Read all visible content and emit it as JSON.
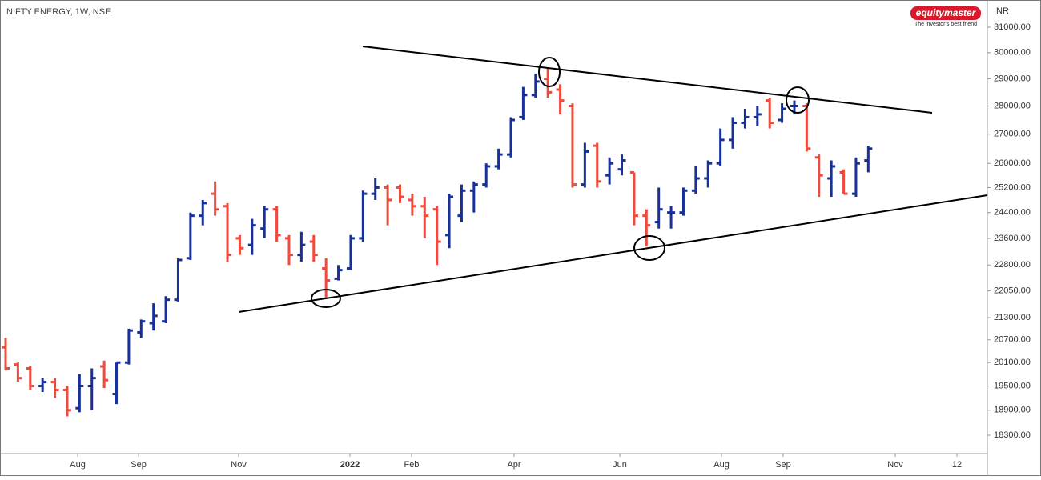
{
  "chart_data": {
    "type": "ohlc",
    "title": "NIFTY ENERGY, 1W, NSE",
    "logo": "equitymaster",
    "logo_tagline": "The investor's best friend",
    "y_axis_label": "INR",
    "log_scale": true,
    "up_color": "#17309a",
    "down_color": "#ef4a3c",
    "open": [
      20500,
      20050,
      19950,
      19500,
      19600,
      19400,
      18950,
      19500,
      20000,
      19300,
      20100,
      20900,
      21150,
      21200,
      21800,
      23000,
      24300,
      25000,
      24600,
      23600,
      23400,
      23900,
      24500,
      23600,
      23100,
      23500,
      22700,
      22400,
      22700,
      23600,
      25000,
      25200,
      25200,
      24800,
      24600,
      24500,
      23700,
      24300,
      25100,
      25300,
      25900,
      26300,
      27600,
      28400,
      29000,
      28600,
      28000,
      25300,
      26600,
      25600,
      25800,
      25700,
      24300,
      24100,
      24400,
      24400,
      25100,
      25500,
      26000,
      26800,
      27400,
      27600,
      28200,
      27500,
      28000,
      28000,
      26200,
      25500,
      25700,
      25000,
      26100
    ],
    "high": [
      20750,
      20100,
      20000,
      19700,
      19700,
      19500,
      19800,
      19950,
      20150,
      20100,
      21000,
      21250,
      21700,
      21900,
      23000,
      24400,
      24800,
      25400,
      24700,
      23700,
      24200,
      24600,
      24600,
      23700,
      23800,
      23700,
      23000,
      22800,
      23700,
      25100,
      25500,
      25300,
      25300,
      25000,
      24900,
      24600,
      25000,
      25300,
      25400,
      26000,
      26500,
      27600,
      28700,
      29200,
      29400,
      28800,
      28100,
      26700,
      26700,
      26200,
      26300,
      25700,
      24500,
      25200,
      24600,
      25200,
      25900,
      26100,
      27200,
      27600,
      27900,
      28000,
      28300,
      28100,
      28200,
      28100,
      26300,
      26100,
      25800,
      26200,
      26600
    ],
    "low": [
      19900,
      19600,
      19400,
      19350,
      19200,
      18750,
      18850,
      18900,
      19450,
      19050,
      20050,
      20750,
      20950,
      21150,
      21750,
      22950,
      24000,
      24300,
      22900,
      23100,
      23100,
      23600,
      23500,
      22800,
      22900,
      22900,
      21850,
      22350,
      22650,
      23500,
      24800,
      24000,
      24700,
      24300,
      23600,
      22800,
      23300,
      24100,
      24400,
      25200,
      25800,
      26200,
      27500,
      28300,
      28300,
      27700,
      25200,
      25200,
      25200,
      25300,
      25600,
      24000,
      23350,
      23900,
      23900,
      24300,
      25000,
      25200,
      25900,
      26500,
      27200,
      27300,
      27200,
      27400,
      27700,
      26400,
      24900,
      24900,
      25000,
      24900,
      25700
    ],
    "close": [
      19950,
      19700,
      19500,
      19600,
      19400,
      18900,
      19500,
      19700,
      19650,
      20100,
      20950,
      21200,
      21350,
      21800,
      22950,
      24300,
      24700,
      24500,
      23100,
      23300,
      24000,
      24500,
      23700,
      23100,
      23400,
      23100,
      22350,
      22650,
      23600,
      25000,
      25200,
      24800,
      24900,
      24600,
      24300,
      23500,
      24900,
      25100,
      25300,
      25900,
      26300,
      27500,
      28400,
      28900,
      28500,
      28200,
      25300,
      26400,
      25400,
      26000,
      26100,
      24300,
      24000,
      24500,
      24400,
      25100,
      25500,
      26000,
      26800,
      27400,
      27600,
      27700,
      27400,
      27900,
      28000,
      26500,
      25600,
      25900,
      25000,
      26000,
      26500
    ],
    "ylim": [
      17870,
      32110
    ],
    "yticks": [
      {
        "value": 31000,
        "label": "31000.00"
      },
      {
        "value": 30000,
        "label": "30000.00"
      },
      {
        "value": 29000,
        "label": "29000.00"
      },
      {
        "value": 28000,
        "label": "28000.00"
      },
      {
        "value": 27000,
        "label": "27000.00"
      },
      {
        "value": 26000,
        "label": "26000.00"
      },
      {
        "value": 25200,
        "label": "25200.00"
      },
      {
        "value": 24400,
        "label": "24400.00"
      },
      {
        "value": 23600,
        "label": "23600.00"
      },
      {
        "value": 22800,
        "label": "22800.00"
      },
      {
        "value": 22050,
        "label": "22050.00"
      },
      {
        "value": 21300,
        "label": "21300.00"
      },
      {
        "value": 20700,
        "label": "20700.00"
      },
      {
        "value": 20100,
        "label": "20100.00"
      },
      {
        "value": 19500,
        "label": "19500.00"
      },
      {
        "value": 18900,
        "label": "18900.00"
      },
      {
        "value": 18300,
        "label": "18300.00"
      }
    ],
    "xlim": [
      -0.455,
      79.66
    ],
    "xticks": [
      {
        "value": 5.85,
        "label": "Aug"
      },
      {
        "value": 10.79,
        "label": "Sep"
      },
      {
        "value": 18.91,
        "label": "Nov"
      },
      {
        "value": 27.94,
        "label": "2022"
      },
      {
        "value": 32.94,
        "label": "Feb"
      },
      {
        "value": 41.26,
        "label": "Apr"
      },
      {
        "value": 49.84,
        "label": "Jun"
      },
      {
        "value": 58.09,
        "label": "Aug"
      },
      {
        "value": 63.09,
        "label": "Sep"
      },
      {
        "value": 72.19,
        "label": "Nov"
      },
      {
        "value": 77.19,
        "label": "12"
      }
    ]
  }
}
